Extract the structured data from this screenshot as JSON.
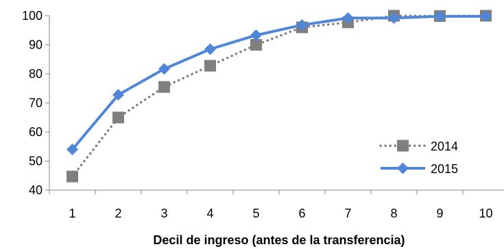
{
  "chart_data": {
    "type": "line",
    "title": "",
    "xlabel": "Decil de ingreso (antes de la transferencia)",
    "ylabel": "",
    "categories": [
      "1",
      "2",
      "3",
      "4",
      "5",
      "6",
      "7",
      "8",
      "9",
      "10"
    ],
    "ylim": [
      40,
      100
    ],
    "yticks": [
      "40",
      "50",
      "60",
      "70",
      "80",
      "90",
      "100"
    ],
    "grid": false,
    "legend_position": "bottom-right",
    "series": [
      {
        "name": "2014",
        "values": [
          44.7,
          65.0,
          75.5,
          82.8,
          90.0,
          96.0,
          97.7,
          100.0,
          99.9,
          100.0
        ],
        "color": "#7f7f7f",
        "marker": "square",
        "line_style": "dotted"
      },
      {
        "name": "2015",
        "values": [
          54.0,
          72.8,
          81.7,
          88.5,
          93.3,
          96.8,
          99.2,
          99.2,
          99.8,
          99.8
        ],
        "color": "#4f86d8",
        "marker": "diamond",
        "line_style": "solid"
      }
    ]
  }
}
